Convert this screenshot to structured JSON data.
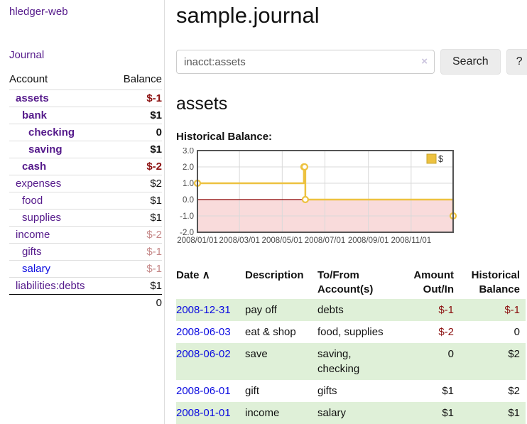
{
  "app": {
    "brand": "hledger-web",
    "nav_journal": "Journal"
  },
  "sidebar": {
    "headers": {
      "account": "Account",
      "balance": "Balance"
    },
    "accounts": [
      {
        "name": "assets",
        "balance": "$-1",
        "depth": 0,
        "bold": true,
        "negative": true,
        "link": "purple"
      },
      {
        "name": "bank",
        "balance": "$1",
        "depth": 1,
        "bold": true,
        "negative": false,
        "link": "purple"
      },
      {
        "name": "checking",
        "balance": "0",
        "depth": 2,
        "bold": true,
        "negative": false,
        "link": "purple"
      },
      {
        "name": "saving",
        "balance": "$1",
        "depth": 2,
        "bold": true,
        "negative": false,
        "link": "purple"
      },
      {
        "name": "cash",
        "balance": "$-2",
        "depth": 1,
        "bold": true,
        "negative": true,
        "link": "purple"
      },
      {
        "name": "expenses",
        "balance": "$2",
        "depth": 0,
        "bold": false,
        "negative": false,
        "link": "purple"
      },
      {
        "name": "food",
        "balance": "$1",
        "depth": 1,
        "bold": false,
        "negative": false,
        "link": "purple"
      },
      {
        "name": "supplies",
        "balance": "$1",
        "depth": 1,
        "bold": false,
        "negative": false,
        "link": "purple"
      },
      {
        "name": "income",
        "balance": "$-2",
        "depth": 0,
        "bold": false,
        "negative": true,
        "link": "purple"
      },
      {
        "name": "gifts",
        "balance": "$-1",
        "depth": 1,
        "bold": false,
        "negative": true,
        "link": "purple"
      },
      {
        "name": "salary",
        "balance": "$-1",
        "depth": 1,
        "bold": false,
        "negative": true,
        "link": "blue"
      },
      {
        "name": "liabilities:debts",
        "balance": "$1",
        "depth": 0,
        "bold": false,
        "negative": false,
        "link": "purple"
      }
    ],
    "total": "0"
  },
  "main": {
    "title": "sample.journal",
    "search": {
      "value": "inacct:assets",
      "clear_icon": "×",
      "button_label": "Search",
      "help_label": "?"
    },
    "account_heading": "assets",
    "chart_title": "Historical Balance:"
  },
  "chart_data": {
    "type": "line",
    "subtype": "step",
    "title": "Historical Balance",
    "xlabel": "",
    "ylabel": "",
    "legend": {
      "label": "$",
      "position": "top-right"
    },
    "series_color": "#edc240",
    "marker_style": "open-circle",
    "ylim": [
      -2.0,
      3.0
    ],
    "y_ticks": [
      -2.0,
      -1.0,
      0.0,
      1.0,
      2.0,
      3.0
    ],
    "y_tick_labels": [
      "-2.0",
      "-1.0",
      "0.0",
      "1.0",
      "2.0",
      "3.0"
    ],
    "xlim_days": [
      0,
      365
    ],
    "x_ticks": [
      {
        "label": "2008/01/01",
        "day": 0
      },
      {
        "label": "2008/03/01",
        "day": 60
      },
      {
        "label": "2008/05/01",
        "day": 121
      },
      {
        "label": "2008/07/01",
        "day": 182
      },
      {
        "label": "2008/09/01",
        "day": 244
      },
      {
        "label": "2008/11/01",
        "day": 305
      }
    ],
    "points": [
      {
        "date": "2008-01-01",
        "day": 0,
        "value": 1
      },
      {
        "date": "2008-06-01",
        "day": 152,
        "value": 2
      },
      {
        "date": "2008-06-02",
        "day": 153,
        "value": 2
      },
      {
        "date": "2008-06-03",
        "day": 154,
        "value": 0
      },
      {
        "date": "2008-12-31",
        "day": 365,
        "value": -1
      }
    ],
    "grid": true,
    "gridline_color": "#d9d9d9",
    "negative_region_color": "#f9dbdb",
    "zero_line_color": "#8b0000",
    "border_color": "#545454"
  },
  "register": {
    "headers": {
      "date": "Date",
      "sort_arrow": "∧",
      "description": "Description",
      "account_line1": "To/From",
      "account_line2": "Account(s)",
      "amount_line1": "Amount",
      "amount_line2": "Out/In",
      "balance_line1": "Historical",
      "balance_line2": "Balance"
    },
    "rows": [
      {
        "date": "2008-12-31",
        "description": "pay off",
        "accounts": "debts",
        "amount": "$-1",
        "amount_negative": true,
        "balance": "$-1",
        "balance_negative": true,
        "striped": true
      },
      {
        "date": "2008-06-03",
        "description": "eat & shop",
        "accounts": "food, supplies",
        "amount": "$-2",
        "amount_negative": true,
        "balance": "0",
        "balance_negative": false,
        "striped": false
      },
      {
        "date": "2008-06-02",
        "description": "save",
        "accounts": "saving, checking",
        "amount": "0",
        "amount_negative": false,
        "balance": "$2",
        "balance_negative": false,
        "striped": true
      },
      {
        "date": "2008-06-01",
        "description": "gift",
        "accounts": "gifts",
        "amount": "$1",
        "amount_negative": false,
        "balance": "$2",
        "balance_negative": false,
        "striped": false
      },
      {
        "date": "2008-01-01",
        "description": "income",
        "accounts": "salary",
        "amount": "$1",
        "amount_negative": false,
        "balance": "$1",
        "balance_negative": false,
        "striped": true
      }
    ]
  }
}
